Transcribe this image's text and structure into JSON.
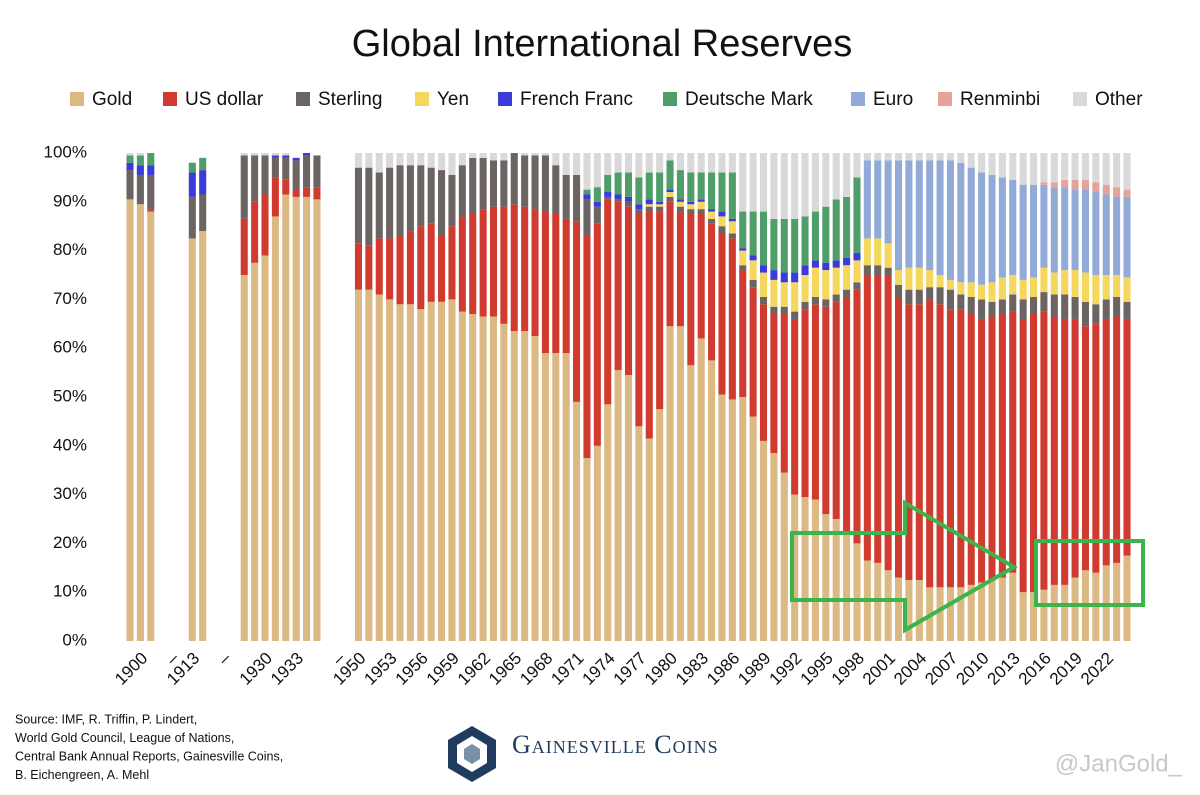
{
  "chart_data": {
    "type": "stacked_bar",
    "title": "Global International Reserves",
    "ylim": [
      0,
      100
    ],
    "yticks": [
      {
        "value": 0,
        "label": "0%"
      },
      {
        "value": 10,
        "label": "10%"
      },
      {
        "value": 20,
        "label": "20%"
      },
      {
        "value": 30,
        "label": "30%"
      },
      {
        "value": 40,
        "label": "40%"
      },
      {
        "value": 50,
        "label": "50%"
      },
      {
        "value": 60,
        "label": "60%"
      },
      {
        "value": 70,
        "label": "70%"
      },
      {
        "value": 80,
        "label": "80%"
      },
      {
        "value": 90,
        "label": "90%"
      },
      {
        "value": 100,
        "label": "100%"
      }
    ],
    "categories": [
      null,
      "1900",
      null,
      null,
      "–",
      null,
      "1913",
      null,
      null,
      "–",
      null,
      null,
      null,
      "1930",
      null,
      null,
      "1933",
      null,
      null,
      null,
      "–",
      null,
      "1950",
      null,
      null,
      "1953",
      null,
      null,
      "1956",
      null,
      null,
      "1959",
      null,
      null,
      "1962",
      null,
      null,
      "1965",
      null,
      null,
      "1968",
      null,
      null,
      "1971",
      null,
      null,
      "1974",
      null,
      null,
      "1977",
      null,
      null,
      "1980",
      null,
      null,
      "1983",
      null,
      null,
      "1986",
      null,
      null,
      "1989",
      null,
      null,
      "1992",
      null,
      null,
      "1995",
      null,
      null,
      "1998",
      null,
      null,
      "2001",
      null,
      null,
      "2004",
      null,
      null,
      "2007",
      null,
      null,
      "2010",
      null,
      null,
      "2013",
      null,
      null,
      "2016",
      null,
      null,
      "2019",
      null,
      null,
      "2022",
      null,
      null
    ],
    "series": [
      {
        "name": "Gold",
        "color": "#dcb982",
        "values": [
          90.5,
          89.5,
          88,
          null,
          null,
          null,
          82.5,
          84,
          null,
          null,
          null,
          75,
          77.5,
          79,
          87,
          91.5,
          91,
          91,
          90.5,
          null,
          null,
          null,
          72,
          72,
          71,
          70,
          69,
          69,
          68,
          69.5,
          69.5,
          70,
          67.5,
          67,
          66.5,
          66.5,
          65,
          63.5,
          63.5,
          62.5,
          59,
          59,
          59,
          49,
          37.5,
          40,
          48.5,
          55.5,
          54.5,
          44,
          41.5,
          47.5,
          64.5,
          64.5,
          56.5,
          62,
          57.5,
          50.5,
          49.5,
          50,
          46,
          41,
          38.5,
          34.5,
          30,
          29.5,
          29,
          26,
          25,
          22,
          20,
          16.5,
          16,
          14.5,
          13,
          12.5,
          12.5,
          11,
          11,
          11,
          11,
          11.5,
          12,
          12.5,
          13,
          14,
          10,
          10,
          10.5,
          11.5,
          11.5,
          13,
          14.5,
          14,
          15.5,
          16,
          17.5
        ]
      },
      {
        "name": "US dollar",
        "color": "#d13b2f",
        "values": [
          0,
          0,
          0.5,
          null,
          null,
          null,
          0,
          0,
          null,
          null,
          null,
          11.5,
          12.5,
          12.5,
          8,
          3,
          1.5,
          2,
          2.5,
          null,
          null,
          null,
          9.5,
          9,
          11.5,
          12.5,
          14,
          15,
          17,
          16,
          13.5,
          15,
          19.5,
          20.5,
          22,
          22.5,
          24,
          26,
          25.5,
          26,
          29,
          28.5,
          27.5,
          37,
          45.5,
          45.5,
          42,
          34.5,
          34.5,
          43.5,
          46.5,
          40.5,
          25.5,
          23.5,
          31,
          25.5,
          28,
          33,
          33,
          26,
          26.5,
          28,
          28.5,
          32.5,
          36,
          38.5,
          40,
          42.5,
          44.5,
          48.5,
          52,
          58.5,
          59,
          60.5,
          57.5,
          56.5,
          56.5,
          59,
          58,
          57,
          57,
          55.5,
          54,
          54,
          54,
          53.5,
          56,
          57,
          57,
          55,
          54.5,
          53,
          50,
          51,
          50.5,
          50.5,
          48.5
        ]
      },
      {
        "name": "Sterling",
        "color": "#6b6462",
        "values": [
          6,
          6,
          7,
          null,
          null,
          null,
          8.5,
          7.5,
          null,
          null,
          null,
          13,
          9.5,
          8,
          4,
          4.5,
          6,
          6.5,
          6.5,
          null,
          null,
          null,
          15.5,
          16,
          13.5,
          14.5,
          14.5,
          13.5,
          12.5,
          11.5,
          13.5,
          10.5,
          10.5,
          11.5,
          10.5,
          9.5,
          9.5,
          10.5,
          10.5,
          11,
          11.5,
          10,
          9,
          9.5,
          7.5,
          3.5,
          0.5,
          0.5,
          1,
          1,
          1,
          1,
          1,
          1,
          1,
          1,
          1,
          1.5,
          1,
          1,
          1.5,
          1.5,
          1.5,
          1.5,
          1.5,
          1.5,
          1.5,
          1.5,
          1.5,
          1.5,
          1.5,
          2,
          2,
          1.5,
          2.5,
          3,
          3,
          2.5,
          3.5,
          4,
          3,
          3.5,
          4,
          3,
          3,
          3.5,
          4,
          3.5,
          4,
          4.5,
          5,
          4.5,
          5,
          4,
          4,
          4,
          3.5
        ]
      },
      {
        "name": "Yen",
        "color": "#f6d75e",
        "values": [
          0,
          0,
          0,
          null,
          null,
          null,
          0,
          0,
          null,
          null,
          null,
          0,
          0,
          0,
          0,
          0,
          0,
          0,
          0,
          null,
          null,
          null,
          0,
          0,
          0,
          0,
          0,
          0,
          0,
          0,
          0,
          0,
          0,
          0,
          0,
          0,
          0,
          0,
          0,
          0,
          0,
          0,
          0,
          0,
          0,
          0,
          0,
          0,
          0,
          0,
          0.5,
          0.5,
          1,
          1,
          1,
          1.5,
          1.5,
          2,
          2.5,
          3,
          4,
          5,
          5.5,
          5,
          6,
          5.5,
          6,
          6,
          5.5,
          5,
          4.5,
          5.5,
          5.5,
          5,
          3,
          4.5,
          4.5,
          3.5,
          2.5,
          2,
          2.5,
          3,
          3,
          4,
          4.5,
          4,
          4,
          4,
          5,
          4.5,
          5,
          5.5,
          6,
          6,
          5,
          4.5,
          5
        ]
      },
      {
        "name": "French Franc",
        "color": "#3b3bdc",
        "values": [
          1.5,
          2,
          2,
          null,
          null,
          null,
          5,
          5,
          null,
          null,
          null,
          0,
          0,
          0,
          0.5,
          0.5,
          0.5,
          0.5,
          0,
          null,
          null,
          null,
          0,
          0,
          0,
          0,
          0,
          0,
          0,
          0,
          0,
          0,
          0,
          0,
          0,
          0,
          0,
          0,
          0,
          0,
          0,
          0,
          0,
          0,
          1,
          1,
          1,
          1,
          1,
          1,
          1,
          0.5,
          0.5,
          0.5,
          0.5,
          0.5,
          0.5,
          1,
          0.5,
          0.5,
          1,
          1.5,
          2,
          2,
          2,
          2,
          1.5,
          1.5,
          1.5,
          1.5,
          1.5,
          0,
          0,
          0,
          0,
          0,
          0,
          0,
          0,
          0,
          0,
          0,
          0,
          0,
          0,
          0,
          0,
          0,
          0,
          0,
          0,
          0,
          0,
          0,
          0,
          0,
          0
        ]
      },
      {
        "name": "Deutsche Mark",
        "color": "#4f9d69",
        "values": [
          1.5,
          2,
          2.5,
          null,
          null,
          null,
          2,
          2.5,
          null,
          null,
          null,
          0,
          0,
          0,
          0,
          0,
          0,
          0,
          0,
          null,
          null,
          null,
          0,
          0,
          0,
          0,
          0,
          0,
          0,
          0,
          0,
          0,
          0,
          0,
          0,
          0,
          0,
          0,
          0,
          0,
          0,
          0,
          0,
          0,
          1,
          3,
          3.5,
          4.5,
          5,
          5.5,
          5.5,
          6,
          6,
          6,
          6,
          5.5,
          7.5,
          8,
          9.5,
          7.5,
          9,
          11,
          10.5,
          11,
          11,
          10,
          10,
          11.5,
          12.5,
          12.5,
          15.5,
          0,
          0,
          0,
          0,
          0,
          0,
          0,
          0,
          0,
          0,
          0,
          0,
          0,
          0,
          0,
          0,
          0,
          0,
          0,
          0,
          0,
          0,
          0,
          0,
          0,
          0
        ]
      },
      {
        "name": "Euro",
        "color": "#91aad8",
        "values": [
          0,
          0,
          0,
          null,
          null,
          null,
          0,
          0,
          null,
          null,
          null,
          0,
          0,
          0,
          0,
          0,
          0,
          0,
          0,
          null,
          null,
          null,
          0,
          0,
          0,
          0,
          0,
          0,
          0,
          0,
          0,
          0,
          0,
          0,
          0,
          0,
          0,
          0,
          0,
          0,
          0,
          0,
          0,
          0,
          0,
          0,
          0,
          0,
          0,
          0,
          0,
          0,
          0,
          0,
          0,
          0,
          0,
          0,
          0,
          0,
          0,
          0,
          0,
          0,
          0,
          0,
          0,
          0,
          0,
          0,
          0,
          16,
          16,
          17,
          22.5,
          22,
          22,
          22.5,
          23.5,
          24.5,
          24.5,
          23.5,
          23,
          22,
          20.5,
          19.5,
          19.5,
          19,
          17,
          17.5,
          17,
          16.5,
          17,
          17,
          16.5,
          16,
          16.5
        ]
      },
      {
        "name": "Renminbi",
        "color": "#e5a39b",
        "values": [
          0,
          0,
          0,
          null,
          null,
          null,
          0,
          0,
          null,
          null,
          null,
          0,
          0,
          0,
          0,
          0,
          0,
          0,
          0,
          null,
          null,
          null,
          0,
          0,
          0,
          0,
          0,
          0,
          0,
          0,
          0,
          0,
          0,
          0,
          0,
          0,
          0,
          0,
          0,
          0,
          0,
          0,
          0,
          0,
          0,
          0,
          0,
          0,
          0,
          0,
          0,
          0,
          0,
          0,
          0,
          0,
          0,
          0,
          0,
          0,
          0,
          0,
          0,
          0,
          0,
          0,
          0,
          0,
          0,
          0,
          0,
          0,
          0,
          0,
          0,
          0,
          0,
          0,
          0,
          0,
          0,
          0,
          0,
          0,
          0,
          0,
          0,
          0,
          0.5,
          1,
          1.5,
          2,
          2,
          2,
          2,
          2,
          1.5
        ]
      },
      {
        "name": "Other",
        "color": "#d9d9d9",
        "values": [
          0.5,
          0.5,
          0,
          null,
          null,
          null,
          0,
          0,
          null,
          null,
          null,
          0.5,
          0.5,
          0.5,
          0.5,
          0.5,
          0,
          0,
          0,
          null,
          null,
          null,
          3,
          3,
          4,
          3,
          2.5,
          2.5,
          2.5,
          3,
          3.5,
          4.5,
          2.5,
          1,
          1,
          1.5,
          1.5,
          0,
          0.5,
          0.5,
          0.5,
          2.5,
          4.5,
          4.5,
          7.5,
          7,
          4.5,
          4,
          4,
          5,
          4,
          4,
          1.5,
          3.5,
          4,
          4,
          4,
          4,
          4,
          12,
          12,
          12,
          13.5,
          13.5,
          13.5,
          13,
          12,
          11,
          9.5,
          9,
          5,
          1.5,
          1.5,
          1.5,
          1.5,
          1.5,
          1.5,
          1.5,
          1.5,
          1.5,
          2,
          3,
          4,
          4.5,
          5,
          5.5,
          6.5,
          6.5,
          6,
          6,
          5.5,
          5.5,
          5.5,
          6,
          6.5,
          7,
          7.5
        ]
      }
    ]
  },
  "footer": {
    "source": [
      "Source: IMF, R. Triffin, P. Lindert,",
      "World Gold Council, League of Nations,",
      "Central Bank Annual Reports, Gainesville Coins,",
      "B. Eichengreen, A. Mehl"
    ],
    "brand": "Gainesville Coins",
    "watermark": "@JanGold_"
  }
}
